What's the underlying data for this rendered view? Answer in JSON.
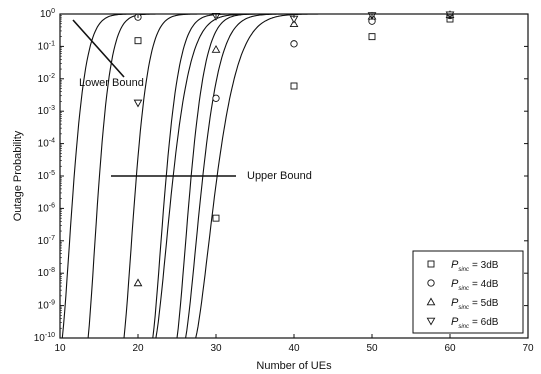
{
  "chart_data": {
    "type": "line",
    "title": "",
    "xlabel": "Number of UEs",
    "ylabel": "Outage Probability",
    "xlim": [
      10,
      70
    ],
    "ylim": [
      1e-10,
      1
    ],
    "yscale": "log",
    "grid": false,
    "legend_position": "bottom-right",
    "x_ticks": [
      "10",
      "20",
      "30",
      "40",
      "50",
      "60",
      "70"
    ],
    "y_ticks": [
      {
        "base": "10",
        "exp": "0"
      },
      {
        "base": "10",
        "exp": "-1"
      },
      {
        "base": "10",
        "exp": "-2"
      },
      {
        "base": "10",
        "exp": "-3"
      },
      {
        "base": "10",
        "exp": "-4"
      },
      {
        "base": "10",
        "exp": "-5"
      },
      {
        "base": "10",
        "exp": "-6"
      },
      {
        "base": "10",
        "exp": "-7"
      },
      {
        "base": "10",
        "exp": "-8"
      },
      {
        "base": "10",
        "exp": "-9"
      },
      {
        "base": "10",
        "exp": "-10"
      }
    ],
    "series": [
      {
        "legend_symbol": "P",
        "legend_sub": "sinc",
        "legend_value": "= 3dB",
        "marker": "square",
        "x": [
          20,
          30,
          40,
          50,
          60
        ],
        "y": [
          0.15,
          5e-07,
          0.006,
          0.2,
          0.7
        ]
      },
      {
        "legend_symbol": "P",
        "legend_sub": "sinc",
        "legend_value": "= 4dB",
        "marker": "circle",
        "x": [
          20,
          30,
          40,
          50,
          60
        ],
        "y": [
          0.8,
          0.0025,
          0.12,
          0.6,
          0.9
        ]
      },
      {
        "legend_symbol": "P",
        "legend_sub": "sinc",
        "legend_value": "= 5dB",
        "marker": "triangle-up",
        "x": [
          20,
          30,
          40,
          50,
          60
        ],
        "y": [
          5e-09,
          0.08,
          0.5,
          0.85,
          0.95
        ]
      },
      {
        "legend_symbol": "P",
        "legend_sub": "sinc",
        "legend_value": "= 6dB",
        "marker": "triangle-down",
        "x": [
          20,
          30,
          40,
          50,
          60
        ],
        "y": [
          0.0018,
          0.85,
          0.7,
          0.9,
          0.95
        ]
      }
    ],
    "annotations": [
      {
        "text": "Lower Bound"
      },
      {
        "text": "Upper Bound"
      }
    ]
  }
}
